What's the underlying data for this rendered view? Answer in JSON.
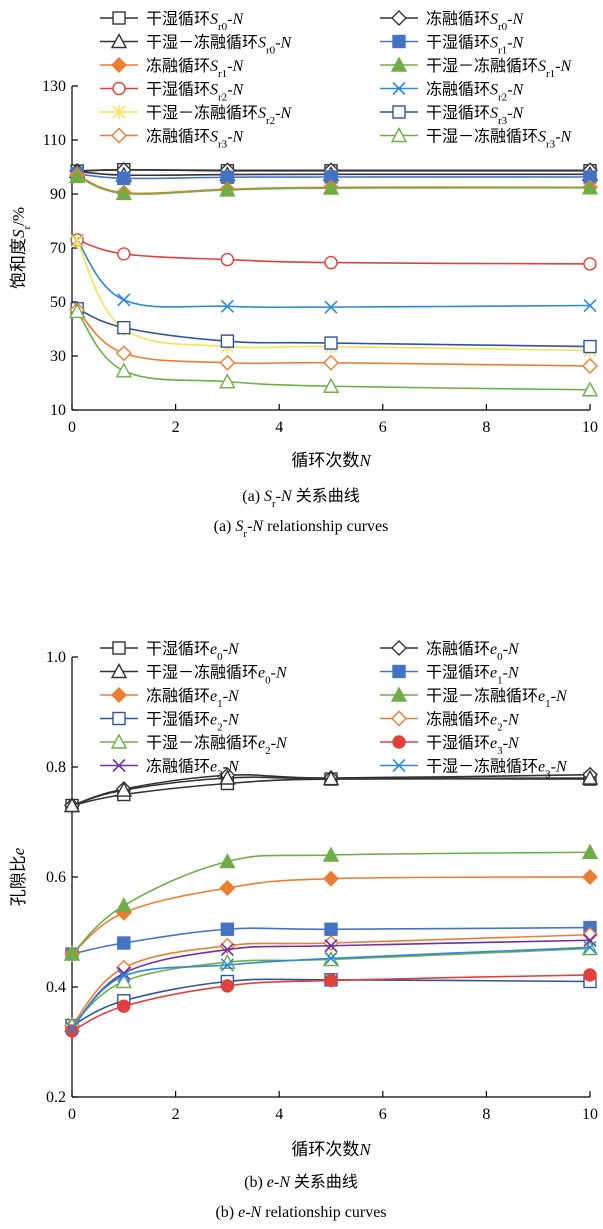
{
  "chart_data": [
    {
      "type": "line",
      "xlabel": "循环次数N",
      "ylabel": "饱和度Sr/%",
      "xlim": [
        0,
        10
      ],
      "ylim": [
        10,
        130
      ],
      "x_ticks": [
        0,
        2,
        4,
        6,
        8,
        10
      ],
      "y_ticks": [
        10,
        30,
        50,
        70,
        90,
        110,
        130
      ],
      "x": [
        0.1,
        1,
        3,
        5,
        10
      ],
      "grid": false,
      "legend_position": "top, two columns",
      "caption_cn": "(a) Sr-N 关系曲线",
      "caption_en": "(a) Sr-N relationship curves",
      "series": [
        {
          "label": {
            "a": "干湿循环",
            "s": "S",
            "sub": "r0",
            "t": "-N"
          },
          "marker": "square",
          "filled": false,
          "color": "#333333",
          "values": [
            98.5,
            99.0,
            98.6,
            98.6,
            98.6
          ]
        },
        {
          "label": {
            "a": "冻融循环",
            "s": "S",
            "sub": "r0",
            "t": "-N"
          },
          "marker": "diamond",
          "filled": false,
          "color": "#333333",
          "values": [
            98.5,
            98.9,
            98.8,
            98.8,
            98.8
          ]
        },
        {
          "label": {
            "a": "干湿－冻融循环",
            "s": "S",
            "sub": "r0",
            "t": "-N"
          },
          "marker": "triangle",
          "filled": false,
          "color": "#333333",
          "values": [
            98.4,
            97.0,
            97.2,
            97.3,
            97.3
          ]
        },
        {
          "label": {
            "a": "干湿循环",
            "s": "S",
            "sub": "r1",
            "t": "-N"
          },
          "marker": "square",
          "filled": true,
          "color": "#4472c4",
          "values": [
            97.5,
            95.8,
            96.2,
            96.3,
            96.3
          ]
        },
        {
          "label": {
            "a": "冻融循环",
            "s": "S",
            "sub": "r1",
            "t": "-N"
          },
          "marker": "diamond",
          "filled": true,
          "color": "#ed7d31",
          "values": [
            97.0,
            90.5,
            91.8,
            92.5,
            92.5
          ]
        },
        {
          "label": {
            "a": "干湿－冻融循环",
            "s": "S",
            "sub": "r1",
            "t": "-N"
          },
          "marker": "triangle",
          "filled": true,
          "color": "#70ad47",
          "values": [
            96.5,
            90.2,
            91.5,
            92.2,
            92.3
          ]
        },
        {
          "label": {
            "a": "干湿循环",
            "s": "S",
            "sub": "r2",
            "t": "-N"
          },
          "marker": "circle",
          "filled": false,
          "color": "#e0413b",
          "values": [
            73.0,
            67.8,
            65.7,
            64.6,
            64.1
          ]
        },
        {
          "label": {
            "a": "冻融循环",
            "s": "S",
            "sub": "r2",
            "t": "-N"
          },
          "marker": "x",
          "filled": false,
          "color": "#2e8ad6",
          "values": [
            72.8,
            50.8,
            48.4,
            48.1,
            48.7
          ]
        },
        {
          "label": {
            "a": "干湿－冻融循环",
            "s": "S",
            "sub": "r2",
            "t": "-N"
          },
          "marker": "star",
          "filled": false,
          "color": "#f2e35a",
          "values": [
            72.5,
            40.0,
            33.5,
            33.5,
            32.0
          ]
        },
        {
          "label": {
            "a": "干湿循环",
            "s": "S",
            "sub": "r3",
            "t": "-N"
          },
          "marker": "square",
          "filled": false,
          "color": "#2f5597",
          "values": [
            47.5,
            40.5,
            35.5,
            34.8,
            33.5
          ]
        },
        {
          "label": {
            "a": "冻融循环",
            "s": "S",
            "sub": "r3",
            "t": "-N"
          },
          "marker": "diamond",
          "filled": false,
          "color": "#ed7d31",
          "values": [
            47.0,
            31.0,
            27.5,
            27.5,
            26.3
          ]
        },
        {
          "label": {
            "a": "干湿－冻融循环",
            "s": "S",
            "sub": "r3",
            "t": "-N"
          },
          "marker": "triangle",
          "filled": false,
          "color": "#70ad47",
          "values": [
            46.5,
            24.5,
            20.5,
            18.8,
            17.5
          ]
        }
      ]
    },
    {
      "type": "line",
      "xlabel": "循环次数N",
      "ylabel": "孔隙比e",
      "xlim": [
        0,
        10
      ],
      "ylim": [
        0.2,
        1.0
      ],
      "x_ticks": [
        0,
        2,
        4,
        6,
        8,
        10
      ],
      "y_ticks": [
        0.2,
        0.4,
        0.6,
        0.8,
        1.0
      ],
      "x": [
        0,
        1,
        3,
        5,
        10
      ],
      "grid": false,
      "legend_position": "top, two columns",
      "caption_cn": "(b) e-N 关系曲线",
      "caption_en": "(b) e-N relationship curves",
      "series": [
        {
          "label": {
            "a": "干湿循环",
            "s": "e",
            "sub": "0",
            "t": "-N"
          },
          "marker": "square",
          "filled": false,
          "color": "#333333",
          "values": [
            0.73,
            0.75,
            0.77,
            0.778,
            0.778
          ]
        },
        {
          "label": {
            "a": "冻融循环",
            "s": "e",
            "sub": "0",
            "t": "-N"
          },
          "marker": "diamond",
          "filled": false,
          "color": "#333333",
          "values": [
            0.73,
            0.76,
            0.785,
            0.78,
            0.786
          ]
        },
        {
          "label": {
            "a": "干湿－冻融循环",
            "s": "e",
            "sub": "0",
            "t": "-N"
          },
          "marker": "triangle",
          "filled": false,
          "color": "#333333",
          "values": [
            0.73,
            0.758,
            0.78,
            0.779,
            0.78
          ]
        },
        {
          "label": {
            "a": "干湿循环",
            "s": "e",
            "sub": "1",
            "t": "-N"
          },
          "marker": "square",
          "filled": true,
          "color": "#4472c4",
          "values": [
            0.46,
            0.48,
            0.505,
            0.505,
            0.508
          ]
        },
        {
          "label": {
            "a": "冻融循环",
            "s": "e",
            "sub": "1",
            "t": "-N"
          },
          "marker": "diamond",
          "filled": true,
          "color": "#ed7d31",
          "values": [
            0.46,
            0.535,
            0.58,
            0.597,
            0.6
          ]
        },
        {
          "label": {
            "a": "干湿－冻融循环",
            "s": "e",
            "sub": "1",
            "t": "-N"
          },
          "marker": "triangle",
          "filled": true,
          "color": "#70ad47",
          "values": [
            0.46,
            0.548,
            0.628,
            0.64,
            0.645
          ]
        },
        {
          "label": {
            "a": "干湿循环",
            "s": "e",
            "sub": "2",
            "t": "-N"
          },
          "marker": "square",
          "filled": false,
          "color": "#2f5597",
          "values": [
            0.33,
            0.375,
            0.41,
            0.413,
            0.41
          ]
        },
        {
          "label": {
            "a": "冻融循环",
            "s": "e",
            "sub": "2",
            "t": "-N"
          },
          "marker": "diamond",
          "filled": false,
          "color": "#ed7d31",
          "values": [
            0.33,
            0.435,
            0.475,
            0.48,
            0.495
          ]
        },
        {
          "label": {
            "a": "干湿－冻融循环",
            "s": "e",
            "sub": "2",
            "t": "-N"
          },
          "marker": "triangle",
          "filled": false,
          "color": "#70ad47",
          "values": [
            0.33,
            0.41,
            0.445,
            0.45,
            0.47
          ]
        },
        {
          "label": {
            "a": "干湿循环",
            "s": "e",
            "sub": "3",
            "t": "-N"
          },
          "marker": "circle",
          "filled": true,
          "color": "#e0413b",
          "values": [
            0.32,
            0.365,
            0.402,
            0.412,
            0.422
          ]
        },
        {
          "label": {
            "a": "冻融循环",
            "s": "e",
            "sub": "3",
            "t": "-N"
          },
          "marker": "x",
          "filled": false,
          "color": "#7030a0",
          "values": [
            0.325,
            0.425,
            0.468,
            0.475,
            0.485
          ]
        },
        {
          "label": {
            "a": "干湿－冻融循环",
            "s": "e",
            "sub": "3",
            "t": "-N"
          },
          "marker": "x",
          "filled": false,
          "color": "#2e8ad6",
          "values": [
            0.325,
            0.42,
            0.44,
            0.452,
            0.472
          ]
        }
      ]
    }
  ]
}
